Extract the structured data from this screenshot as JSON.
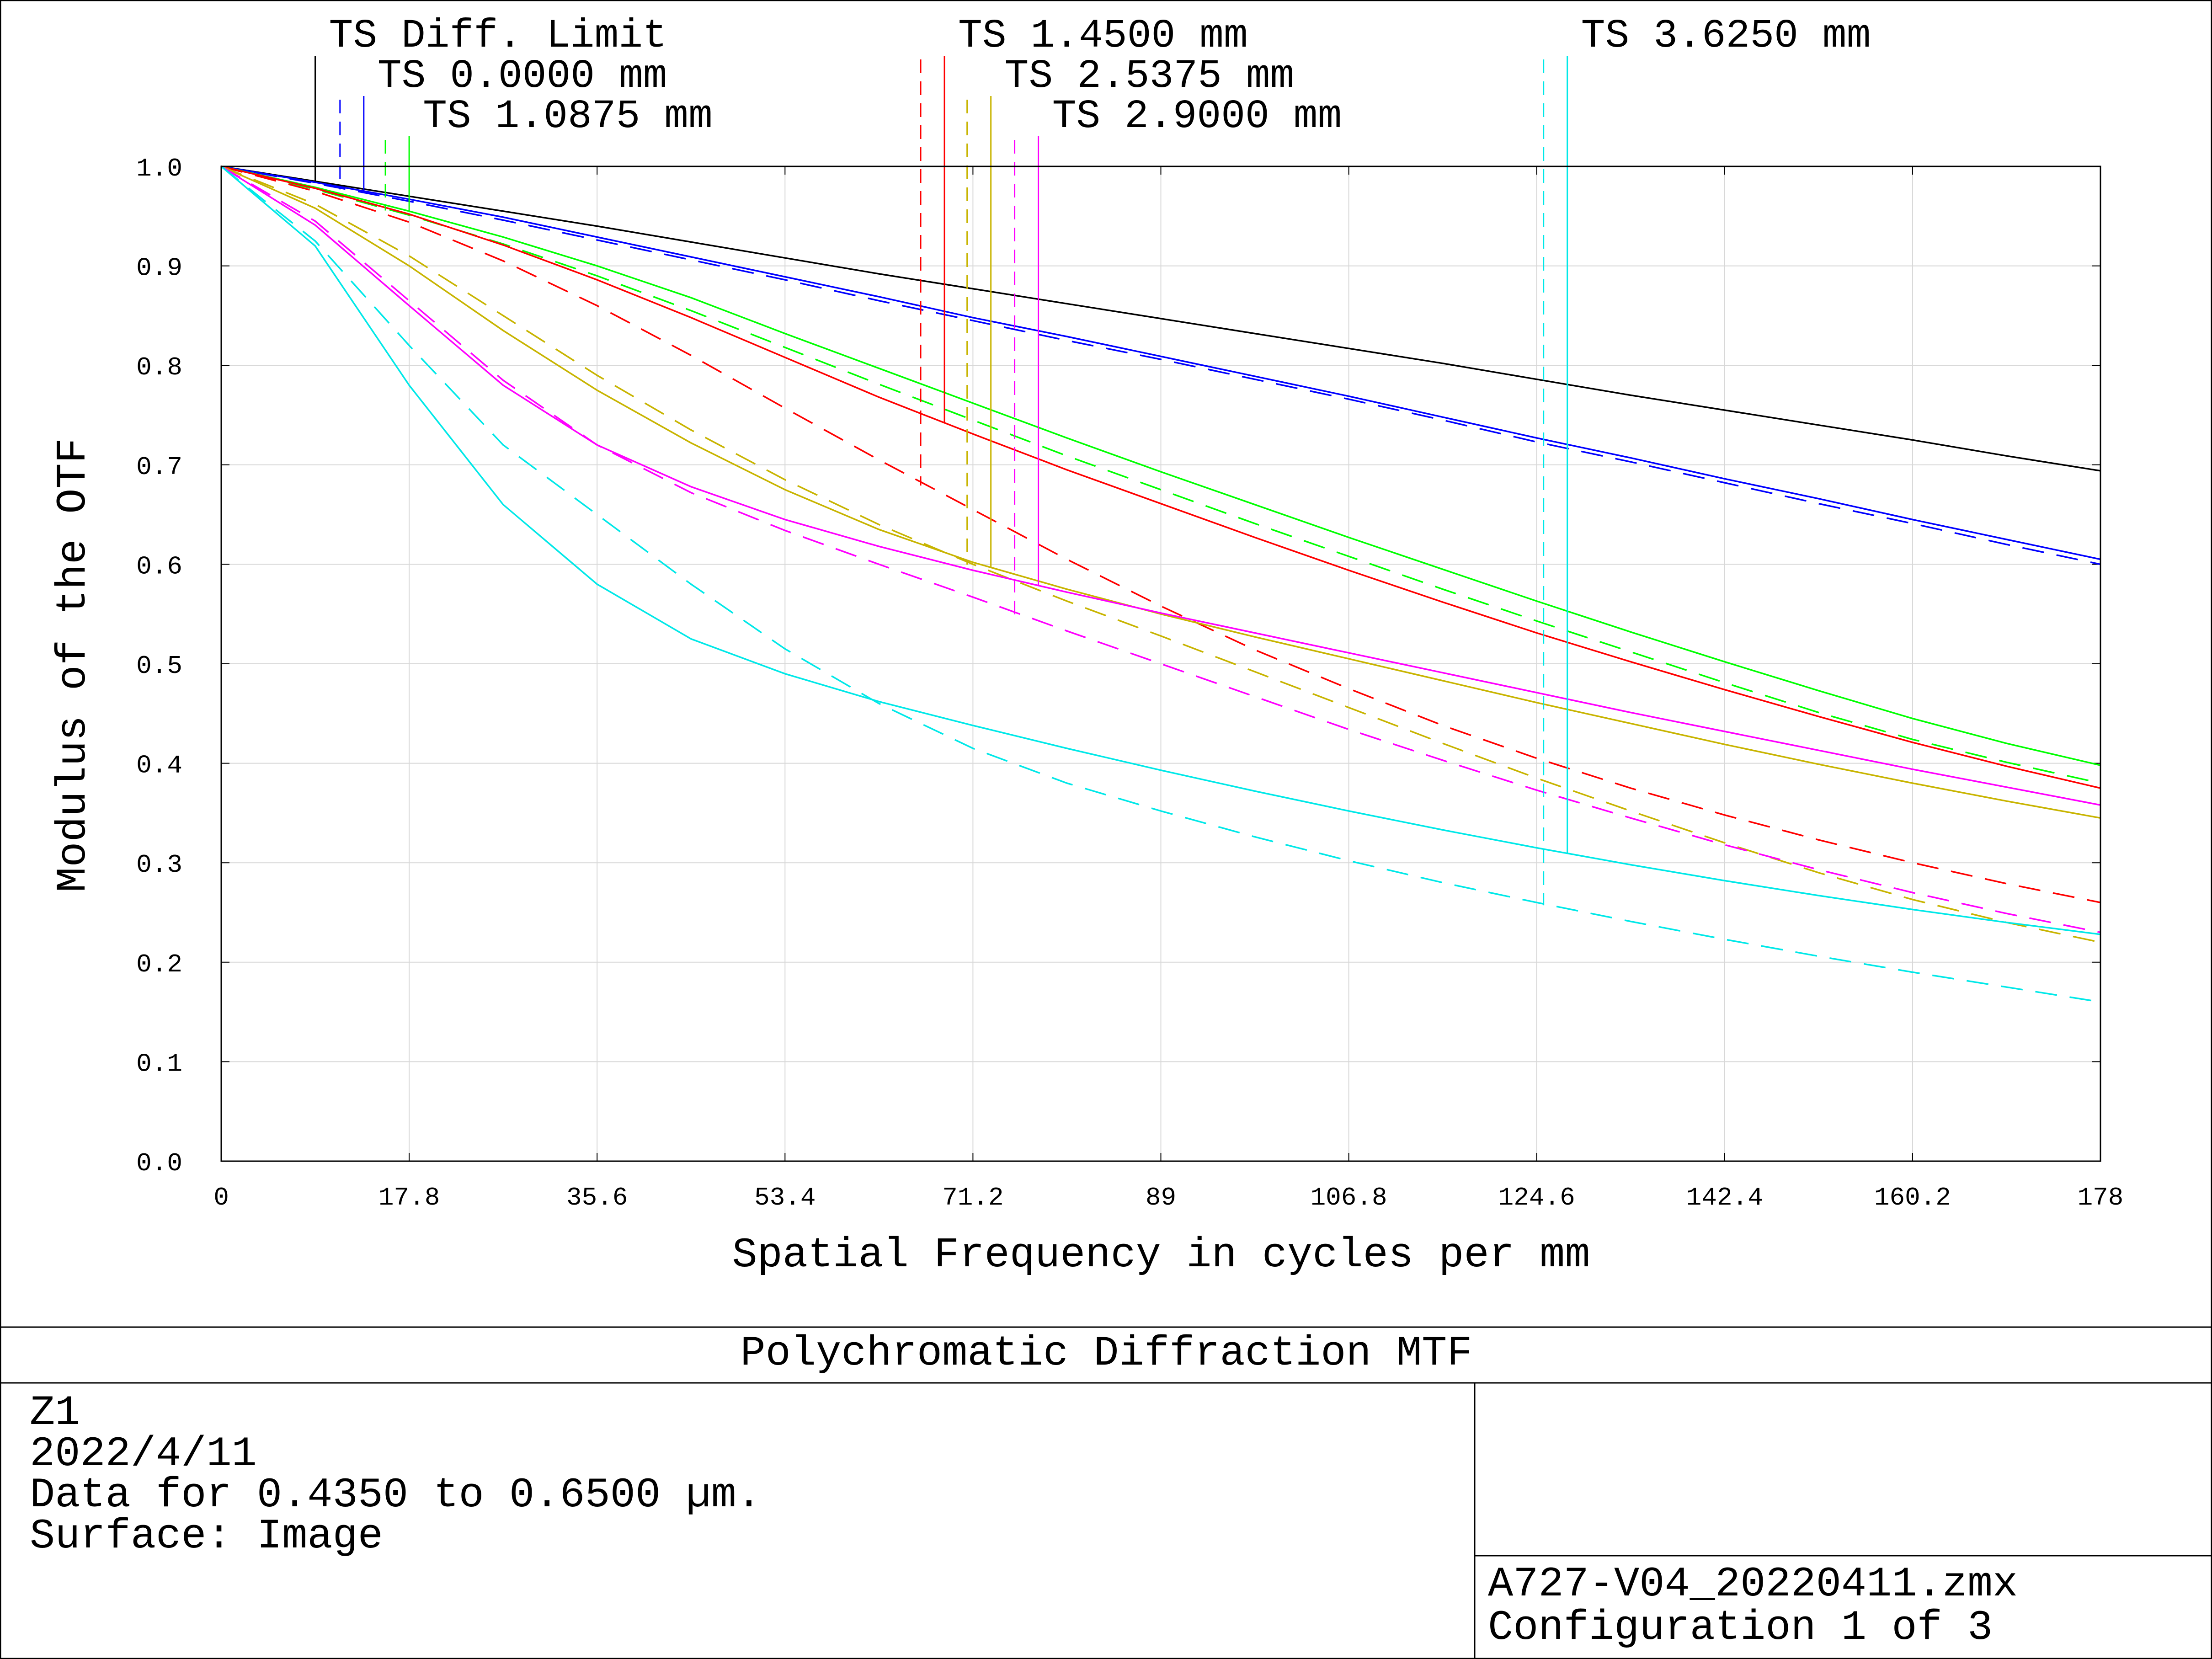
{
  "chart_data": {
    "type": "line",
    "title": "Polychromatic Diffraction MTF",
    "xlabel": "Spatial Frequency in cycles per mm",
    "ylabel": "Modulus of the OTF",
    "xlim": [
      0,
      178
    ],
    "ylim": [
      0,
      1
    ],
    "xticks": [
      "0",
      "17.8",
      "35.6",
      "53.4",
      "71.2",
      "89",
      "106.8",
      "124.6",
      "142.4",
      "160.2",
      "178"
    ],
    "yticks": [
      "0.0",
      "0.1",
      "0.2",
      "0.3",
      "0.4",
      "0.5",
      "0.6",
      "0.7",
      "0.8",
      "0.9",
      "1.0"
    ],
    "grid": true,
    "x": [
      0,
      8.9,
      17.8,
      26.7,
      35.6,
      44.5,
      53.4,
      62.3,
      71.2,
      80.1,
      89,
      97.9,
      106.8,
      115.7,
      124.6,
      133.5,
      142.4,
      151.3,
      160.2,
      169.1,
      178
    ],
    "series": [
      {
        "label": "TS Diff. Limit",
        "color": "#000000",
        "dash": "solid",
        "values": [
          1.0,
          0.985,
          0.97,
          0.955,
          0.94,
          0.924,
          0.908,
          0.892,
          0.877,
          0.862,
          0.847,
          0.832,
          0.817,
          0.802,
          0.786,
          0.77,
          0.755,
          0.74,
          0.725,
          0.709,
          0.694
        ]
      },
      {
        "label": "TS 0.0000 mm",
        "color": "#0000ff",
        "dash": "dashed",
        "values": [
          1.0,
          0.983,
          0.965,
          0.946,
          0.926,
          0.906,
          0.886,
          0.865,
          0.845,
          0.825,
          0.806,
          0.786,
          0.766,
          0.745,
          0.723,
          0.703,
          0.682,
          0.661,
          0.641,
          0.62,
          0.6
        ]
      },
      {
        "label": "TS 0.0000 mm",
        "color": "#0000ff",
        "dash": "solid",
        "values": [
          1.0,
          0.984,
          0.967,
          0.949,
          0.929,
          0.909,
          0.889,
          0.869,
          0.848,
          0.829,
          0.809,
          0.789,
          0.769,
          0.748,
          0.727,
          0.707,
          0.686,
          0.666,
          0.645,
          0.625,
          0.605
        ]
      },
      {
        "label": "TS 1.0875 mm",
        "color": "#00ff00",
        "dash": "dashed",
        "values": [
          1.0,
          0.977,
          0.951,
          0.922,
          0.89,
          0.855,
          0.818,
          0.781,
          0.745,
          0.709,
          0.675,
          0.641,
          0.608,
          0.575,
          0.543,
          0.512,
          0.481,
          0.451,
          0.424,
          0.401,
          0.38
        ]
      },
      {
        "label": "TS 1.0875 mm",
        "color": "#00ff00",
        "dash": "solid",
        "values": [
          1.0,
          0.979,
          0.955,
          0.929,
          0.9,
          0.868,
          0.832,
          0.797,
          0.762,
          0.727,
          0.693,
          0.66,
          0.627,
          0.595,
          0.563,
          0.532,
          0.502,
          0.473,
          0.445,
          0.42,
          0.398
        ]
      },
      {
        "label": "TS 1.4500 mm",
        "color": "#ff0000",
        "dash": "dashed",
        "values": [
          1.0,
          0.975,
          0.944,
          0.905,
          0.86,
          0.81,
          0.757,
          0.705,
          0.655,
          0.605,
          0.558,
          0.514,
          0.475,
          0.438,
          0.405,
          0.375,
          0.348,
          0.323,
          0.3,
          0.279,
          0.26
        ]
      },
      {
        "label": "TS 1.4500 mm",
        "color": "#ff0000",
        "dash": "solid",
        "values": [
          1.0,
          0.978,
          0.952,
          0.921,
          0.886,
          0.848,
          0.808,
          0.768,
          0.731,
          0.695,
          0.661,
          0.627,
          0.594,
          0.562,
          0.531,
          0.502,
          0.474,
          0.447,
          0.421,
          0.397,
          0.375
        ]
      },
      {
        "label": "TS 2.5375 mm",
        "color": "#c8b400",
        "dash": "dashed",
        "values": [
          1.0,
          0.962,
          0.91,
          0.85,
          0.79,
          0.735,
          0.685,
          0.64,
          0.6,
          0.563,
          0.528,
          0.492,
          0.456,
          0.42,
          0.385,
          0.352,
          0.32,
          0.29,
          0.263,
          0.24,
          0.22
        ]
      },
      {
        "label": "TS 2.5375 mm",
        "color": "#c8b400",
        "dash": "solid",
        "values": [
          1.0,
          0.958,
          0.9,
          0.835,
          0.775,
          0.722,
          0.675,
          0.635,
          0.602,
          0.575,
          0.55,
          0.527,
          0.505,
          0.483,
          0.461,
          0.44,
          0.419,
          0.399,
          0.38,
          0.362,
          0.345
        ]
      },
      {
        "label": "TS 2.9000 mm",
        "color": "#ff00ff",
        "dash": "dashed",
        "values": [
          1.0,
          0.945,
          0.865,
          0.785,
          0.72,
          0.672,
          0.634,
          0.6,
          0.567,
          0.533,
          0.5,
          0.467,
          0.434,
          0.403,
          0.373,
          0.345,
          0.318,
          0.293,
          0.27,
          0.249,
          0.23
        ]
      },
      {
        "label": "TS 2.9000 mm",
        "color": "#ff00ff",
        "dash": "solid",
        "values": [
          1.0,
          0.941,
          0.86,
          0.78,
          0.72,
          0.678,
          0.645,
          0.618,
          0.594,
          0.572,
          0.551,
          0.531,
          0.511,
          0.491,
          0.471,
          0.451,
          0.432,
          0.413,
          0.394,
          0.376,
          0.358
        ]
      },
      {
        "label": "TS 3.6250 mm",
        "color": "#00e8e8",
        "dash": "dashed",
        "values": [
          1.0,
          0.925,
          0.82,
          0.72,
          0.65,
          0.58,
          0.515,
          0.46,
          0.415,
          0.38,
          0.352,
          0.326,
          0.302,
          0.28,
          0.26,
          0.241,
          0.223,
          0.206,
          0.19,
          0.175,
          0.16
        ]
      },
      {
        "label": "TS 3.6250 mm",
        "color": "#00e8e8",
        "dash": "solid",
        "values": [
          1.0,
          0.92,
          0.78,
          0.66,
          0.58,
          0.525,
          0.49,
          0.462,
          0.438,
          0.415,
          0.393,
          0.372,
          0.352,
          0.333,
          0.315,
          0.298,
          0.282,
          0.267,
          0.253,
          0.24,
          0.228
        ]
      }
    ],
    "legend": {
      "placement": "top",
      "labels": [
        {
          "text": "TS Diff. Limit",
          "color": "#000000",
          "dashed_marker": false,
          "x": 8.9
        },
        {
          "text": "TS 0.0000 mm",
          "color": "#0000ff",
          "dashed_marker": true,
          "x": 13.5
        },
        {
          "text": "TS 1.0875 mm",
          "color": "#00ff00",
          "dashed_marker": true,
          "x": 17.8
        },
        {
          "text": "TS 1.4500 mm",
          "color": "#ff0000",
          "dashed_marker": true,
          "x": 68.5
        },
        {
          "text": "TS 2.5375 mm",
          "color": "#c8b400",
          "dashed_marker": true,
          "x": 72.9
        },
        {
          "text": "TS 2.9000 mm",
          "color": "#ff00ff",
          "dashed_marker": true,
          "x": 77.4
        },
        {
          "text": "TS 3.6250 mm",
          "color": "#00e8e8",
          "dashed_marker": true,
          "x": 127.5
        }
      ]
    }
  },
  "info": {
    "lines": [
      "Z1",
      "2022/4/11",
      "Data for 0.4350 to 0.6500 µm.",
      "Surface: Image"
    ],
    "file": "A727-V04_20220411.zmx",
    "config": "Configuration 1 of 3"
  }
}
